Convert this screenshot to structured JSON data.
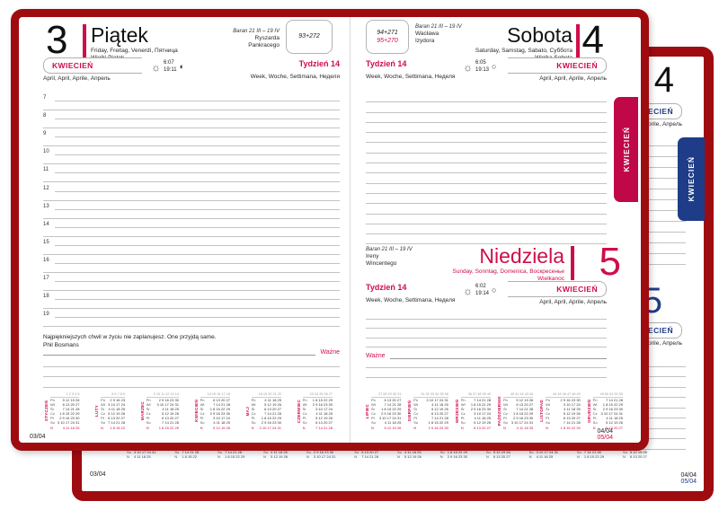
{
  "colors": {
    "accent_red": "#cf0e49",
    "tab_red": "#c00747",
    "cover_dark_red": "#9e0c10",
    "accent_blue": "#1e3c87",
    "line_gray": "#c3c3c3"
  },
  "icons": {
    "sun": "☼",
    "moon_gibbous": "◐",
    "moon_full": "○"
  },
  "front": {
    "tab": "KWIECIEŃ",
    "left_page": {
      "day_number": "3",
      "day_name": "Piątek",
      "day_langs": "Friday, Freitag, Venerdì, Пятница",
      "holiday": "Wielki Piątek",
      "zodiac": "Baran 21 III – 19 IV",
      "nameday1": "Ryszarda",
      "nameday2": "Pankracego",
      "day_counter": "93+272",
      "month_label": "KWIECIEŃ",
      "month_langs": "April, April, Aprile, Апрель",
      "sunrise": "6:07",
      "sunset": "19:11",
      "week_label": "Tydzień 14",
      "week_langs": "Week, Woche, Settimana, Неделя",
      "hours": [
        "7",
        "8",
        "9",
        "10",
        "11",
        "12",
        "13",
        "14",
        "15",
        "16",
        "17",
        "18",
        "19"
      ],
      "quote": "Najpiękniejszych chwil w życiu nie zaplanujesz. One przyjdą same.",
      "quote_author": "Phil Bosmans",
      "important_label": "Ważne",
      "page_number": "03/04"
    },
    "right_page": {
      "saturday": {
        "day_number": "4",
        "day_name": "Sobota",
        "day_langs": "Saturday, Samstag, Sabato, Суббота",
        "holiday": "Wielka Sobota",
        "zodiac": "Baran 21 III – 19 IV",
        "nameday1": "Wacława",
        "nameday2": "Izydora",
        "day_counter_black": "94+271",
        "day_counter_red": "95+270",
        "week_label": "Tydzień 14",
        "week_langs": "Week, Woche, Settimana, Неделя",
        "sunrise": "6:05",
        "sunset": "19:13",
        "month_label": "KWIECIEŃ",
        "month_langs": "April, April, Aprile, Апрель"
      },
      "sunday": {
        "day_number": "5",
        "day_name": "Niedziela",
        "day_langs": "Sunday, Sonntag, Domenica, Воскресенье",
        "holiday": "Wielkanoc",
        "zodiac": "Baran 21 III – 19 IV",
        "nameday1": "Ireny",
        "nameday2": "Wincentego",
        "week_label": "Tydzień 14",
        "week_langs": "Week, Woche, Settimana, Неделя",
        "sunrise": "6:02",
        "sunset": "19:14",
        "month_label": "KWIECIEŃ",
        "month_langs": "April, April, Aprile, Апрель"
      },
      "important_label": "Ważne",
      "page_number_black": "04/04",
      "page_number_red": "05/04"
    }
  },
  "back": {
    "tab": "KWIECIEŃ",
    "day_number_top": "4",
    "day_number_bottom": "5",
    "month_label": "KWIECIEŃ",
    "month_langs": "April, April, Aprile, Апрель",
    "page_number_left": "03/04",
    "page_number_black": "04/04",
    "page_number_blue": "05/04"
  },
  "calendar": {
    "day_labels": [
      "Pn",
      "Wt",
      "Śr",
      "Cz",
      "Pt",
      "So",
      "N"
    ],
    "jan_jun": [
      {
        "name": "STYCZEŃ",
        "weeks": "1 2 3 4 5",
        "rows": [
          "5 12 19 26",
          "6 13 20 27",
          "7 14 21 28",
          "1 8 15 22 29",
          "2 9 16 23 30",
          "3 10 17 24 31",
          "4 11 18 25"
        ]
      },
      {
        "name": "LUTY",
        "weeks": "5 6 7 8 9",
        "rows": [
          "2 9 16 23",
          "3 10 17 24",
          "4 11 18 25",
          "5 12 19 26",
          "6 13 20 27",
          "7 14 21 28",
          "1 8 15 22"
        ]
      },
      {
        "name": "MARZEC",
        "weeks": "9 10 11 12 13 14",
        "rows": [
          "2 9 16 23 30",
          "3 10 17 24 31",
          "4 11 18 25",
          "5 12 19 26",
          "6 13 20 27",
          "7 14 21 28",
          "1 8 15 22 29"
        ]
      },
      {
        "name": "KWIECIEŃ",
        "weeks": "14 15 16 17 18",
        "rows": [
          "6 13 20 27",
          "7 14 21 28",
          "1 8 15 22 29",
          "2 9 16 23 30",
          "3 10 17 24",
          "4 11 18 25",
          "5 12 19 26"
        ]
      },
      {
        "name": "MAJ",
        "weeks": "18 19 20 21 22",
        "rows": [
          "4 11 18 25",
          "5 12 19 26",
          "6 13 20 27",
          "7 14 21 28",
          "1 8 15 22 29",
          "2 9 16 23 30",
          "3 10 17 24 31"
        ]
      },
      {
        "name": "CZERWIEC",
        "weeks": "23 24 25 26 27",
        "rows": [
          "1 8 15 22 29",
          "2 9 16 23 30",
          "3 10 17 24",
          "4 11 18 25",
          "5 12 19 26",
          "6 13 20 27",
          "7 14 21 28"
        ]
      }
    ],
    "jul_dec": [
      {
        "name": "LIPIEC",
        "weeks": "27 28 29 30 31",
        "rows": [
          "6 13 20 27",
          "7 14 21 28",
          "1 8 15 22 29",
          "2 9 16 23 30",
          "3 10 17 24 31",
          "4 11 18 25",
          "5 12 19 26"
        ]
      },
      {
        "name": "SIERPIEŃ",
        "weeks": "31 32 33 34 35 36",
        "rows": [
          "3 10 17 24 31",
          "4 11 18 25",
          "5 12 19 26",
          "6 13 20 27",
          "7 14 21 28",
          "1 8 15 22 29",
          "2 9 16 23 30"
        ]
      },
      {
        "name": "WRZESIEŃ",
        "weeks": "36 37 38 39 40",
        "rows": [
          "7 14 21 28",
          "1 8 15 22 29",
          "2 9 16 23 30",
          "3 10 17 24",
          "4 11 18 25",
          "5 12 19 26",
          "6 13 20 27"
        ]
      },
      {
        "name": "PAŹDZIERNIK",
        "weeks": "40 41 42 43 44",
        "rows": [
          "5 12 19 26",
          "6 13 20 27",
          "7 14 21 28",
          "1 8 15 22 29",
          "2 9 16 23 30",
          "3 10 17 24 31",
          "4 11 18 25"
        ]
      },
      {
        "name": "LISTOPAD",
        "weeks": "44 45 46 47 48 49",
        "rows": [
          "2 9 16 23 30",
          "3 10 17 24",
          "4 11 18 25",
          "5 12 19 26",
          "6 13 20 27",
          "7 14 21 28",
          "1 8 15 22 29"
        ]
      },
      {
        "name": "GRUDZIEŃ",
        "weeks": "49 50 51 52 53",
        "rows": [
          "7 14 21 28",
          "1 8 15 22 29",
          "2 9 16 23 30",
          "3 10 17 24 31",
          "4 11 18 25",
          "5 12 19 26",
          "6 13 20 27"
        ]
      }
    ]
  }
}
